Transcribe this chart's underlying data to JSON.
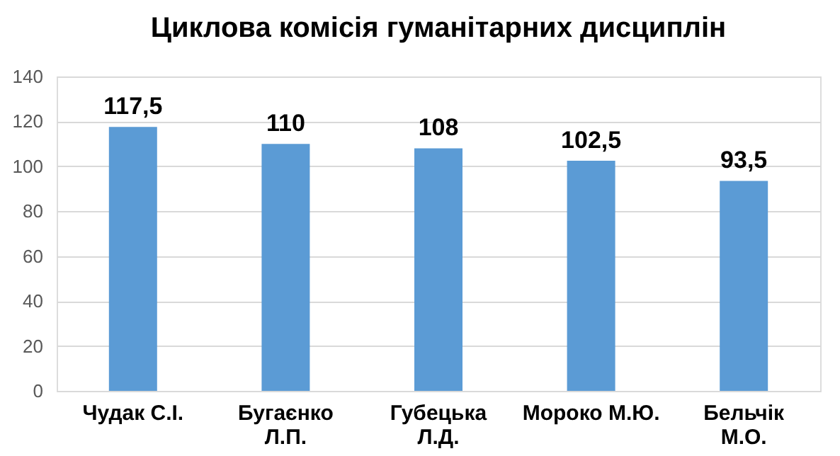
{
  "chart_data": {
    "type": "bar",
    "title": "Циклова комісія гуманітарних дисциплін",
    "categories": [
      "Чудак С.І.",
      "Бугаєнко Л.П.",
      "Губецька Л.Д.",
      "Мороко М.Ю.",
      "Бельчік М.О."
    ],
    "values": [
      117.5,
      110,
      108,
      102.5,
      93.5
    ],
    "value_labels": [
      "117,5",
      "110",
      "108",
      "102,5",
      "93,5"
    ],
    "color": "#5b9bd5",
    "ylim": [
      0,
      140
    ],
    "yticks": [
      0,
      20,
      40,
      60,
      80,
      100,
      120,
      140
    ],
    "grid": "y"
  }
}
